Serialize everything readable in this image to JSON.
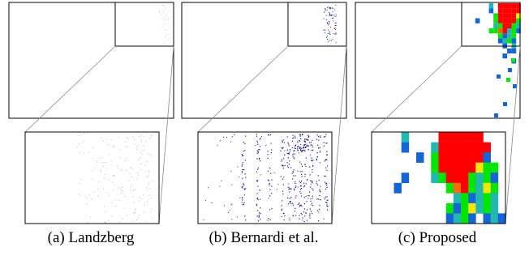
{
  "figure": {
    "panels": [
      {
        "caption": "(a) Landzberg",
        "method": "Landzberg",
        "render_style": "sparse-gray-dots",
        "dot_color": "#b7b7c4",
        "density": 0.35
      },
      {
        "caption": "(b) Bernardi et al.",
        "method": "Bernardi et al.",
        "render_style": "sparse-blue-dots",
        "dot_color": "#1a1a9a",
        "density": 1.0
      },
      {
        "caption": "(c) Proposed",
        "method": "Proposed",
        "render_style": "heatmap-blocks"
      }
    ],
    "heatmap_colors": {
      "red": "#ff0000",
      "orange": "#ff6a00",
      "yellow": "#ffe600",
      "green": "#00e600",
      "teal": "#22b8b0",
      "blue": "#1565d8"
    }
  }
}
